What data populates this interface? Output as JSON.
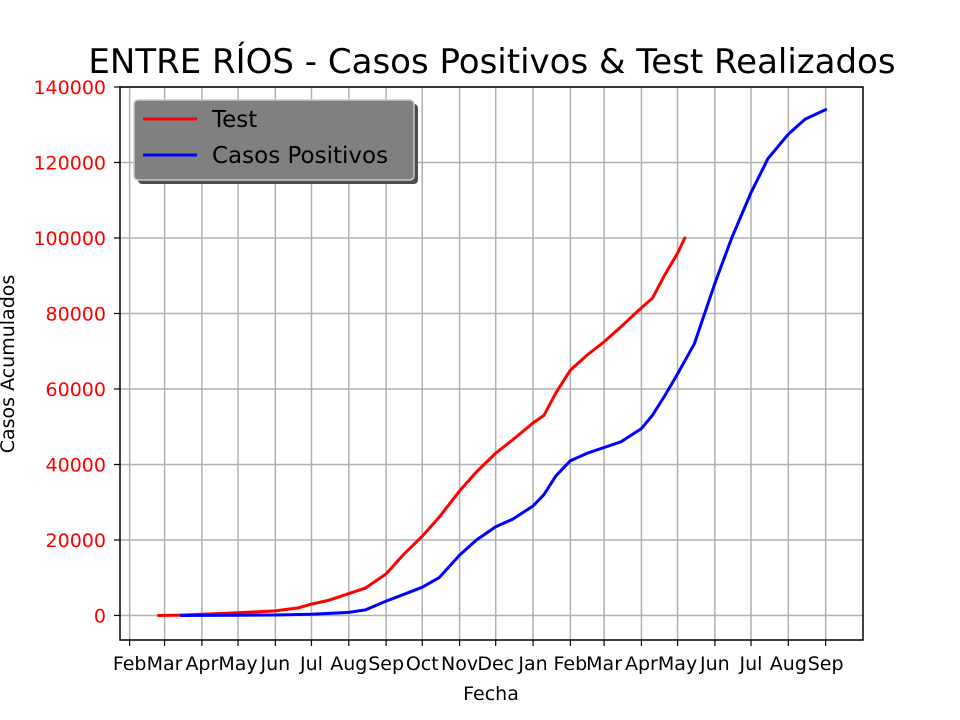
{
  "chart_data": {
    "type": "line",
    "title": "ENTRE RÍOS - Casos Positivos & Test Realizados",
    "xlabel": "Fecha",
    "ylabel": "Casos Acumulados",
    "ylim": [
      -6500,
      140000
    ],
    "xlim": [
      "2020-01-24",
      "2021-10-02"
    ],
    "yticks": [
      0,
      20000,
      40000,
      60000,
      80000,
      100000,
      120000,
      140000
    ],
    "xticks": [
      {
        "date": "2020-02-01",
        "label": "Feb"
      },
      {
        "date": "2020-03-01",
        "label": "Mar"
      },
      {
        "date": "2020-04-01",
        "label": "Apr"
      },
      {
        "date": "2020-05-01",
        "label": "May"
      },
      {
        "date": "2020-06-01",
        "label": "Jun"
      },
      {
        "date": "2020-07-01",
        "label": "Jul"
      },
      {
        "date": "2020-08-01",
        "label": "Aug"
      },
      {
        "date": "2020-09-01",
        "label": "Sep"
      },
      {
        "date": "2020-10-01",
        "label": "Oct"
      },
      {
        "date": "2020-11-01",
        "label": "Nov"
      },
      {
        "date": "2020-12-01",
        "label": "Dec"
      },
      {
        "date": "2021-01-01",
        "label": "Jan"
      },
      {
        "date": "2021-02-01",
        "label": "Feb"
      },
      {
        "date": "2021-03-01",
        "label": "Mar"
      },
      {
        "date": "2021-04-01",
        "label": "Apr"
      },
      {
        "date": "2021-05-01",
        "label": "May"
      },
      {
        "date": "2021-06-01",
        "label": "Jun"
      },
      {
        "date": "2021-07-01",
        "label": "Jul"
      },
      {
        "date": "2021-08-01",
        "label": "Aug"
      },
      {
        "date": "2021-09-01",
        "label": "Sep"
      }
    ],
    "grid": true,
    "legend_position": "top-left",
    "series": [
      {
        "name": "Test",
        "color": "#ff0000",
        "points": [
          {
            "x": "2020-02-25",
            "y": 0
          },
          {
            "x": "2020-03-15",
            "y": 100
          },
          {
            "x": "2020-04-01",
            "y": 300
          },
          {
            "x": "2020-05-01",
            "y": 700
          },
          {
            "x": "2020-06-01",
            "y": 1200
          },
          {
            "x": "2020-06-20",
            "y": 2000
          },
          {
            "x": "2020-07-01",
            "y": 3000
          },
          {
            "x": "2020-07-15",
            "y": 4000
          },
          {
            "x": "2020-08-01",
            "y": 5800
          },
          {
            "x": "2020-08-15",
            "y": 7300
          },
          {
            "x": "2020-09-01",
            "y": 11000
          },
          {
            "x": "2020-09-15",
            "y": 16000
          },
          {
            "x": "2020-10-01",
            "y": 21000
          },
          {
            "x": "2020-10-15",
            "y": 26000
          },
          {
            "x": "2020-11-01",
            "y": 33000
          },
          {
            "x": "2020-11-15",
            "y": 38000
          },
          {
            "x": "2020-12-01",
            "y": 43000
          },
          {
            "x": "2020-12-15",
            "y": 46500
          },
          {
            "x": "2021-01-01",
            "y": 51000
          },
          {
            "x": "2021-01-10",
            "y": 53000
          },
          {
            "x": "2021-01-20",
            "y": 59000
          },
          {
            "x": "2021-02-01",
            "y": 65000
          },
          {
            "x": "2021-02-15",
            "y": 69000
          },
          {
            "x": "2021-03-01",
            "y": 72500
          },
          {
            "x": "2021-03-15",
            "y": 76500
          },
          {
            "x": "2021-04-01",
            "y": 81500
          },
          {
            "x": "2021-04-10",
            "y": 84000
          },
          {
            "x": "2021-04-20",
            "y": 90000
          },
          {
            "x": "2021-05-01",
            "y": 96000
          },
          {
            "x": "2021-05-07",
            "y": 100000
          }
        ]
      },
      {
        "name": "Casos Positivos",
        "color": "#0000ff",
        "points": [
          {
            "x": "2020-03-15",
            "y": 0
          },
          {
            "x": "2020-04-01",
            "y": 20
          },
          {
            "x": "2020-05-01",
            "y": 60
          },
          {
            "x": "2020-06-01",
            "y": 120
          },
          {
            "x": "2020-07-01",
            "y": 300
          },
          {
            "x": "2020-08-01",
            "y": 800
          },
          {
            "x": "2020-08-15",
            "y": 1500
          },
          {
            "x": "2020-09-01",
            "y": 3800
          },
          {
            "x": "2020-09-15",
            "y": 5500
          },
          {
            "x": "2020-10-01",
            "y": 7500
          },
          {
            "x": "2020-10-15",
            "y": 10000
          },
          {
            "x": "2020-11-01",
            "y": 16000
          },
          {
            "x": "2020-11-15",
            "y": 20000
          },
          {
            "x": "2020-12-01",
            "y": 23500
          },
          {
            "x": "2020-12-15",
            "y": 25500
          },
          {
            "x": "2021-01-01",
            "y": 29000
          },
          {
            "x": "2021-01-10",
            "y": 32000
          },
          {
            "x": "2021-01-20",
            "y": 37000
          },
          {
            "x": "2021-02-01",
            "y": 41000
          },
          {
            "x": "2021-02-15",
            "y": 43000
          },
          {
            "x": "2021-03-01",
            "y": 44500
          },
          {
            "x": "2021-03-15",
            "y": 46000
          },
          {
            "x": "2021-04-01",
            "y": 49500
          },
          {
            "x": "2021-04-10",
            "y": 53000
          },
          {
            "x": "2021-04-20",
            "y": 58000
          },
          {
            "x": "2021-05-01",
            "y": 64000
          },
          {
            "x": "2021-05-15",
            "y": 72000
          },
          {
            "x": "2021-06-01",
            "y": 88000
          },
          {
            "x": "2021-06-15",
            "y": 100000
          },
          {
            "x": "2021-07-01",
            "y": 112000
          },
          {
            "x": "2021-07-15",
            "y": 121000
          },
          {
            "x": "2021-08-01",
            "y": 127500
          },
          {
            "x": "2021-08-15",
            "y": 131500
          },
          {
            "x": "2021-09-01",
            "y": 134000
          }
        ]
      }
    ]
  },
  "colors": {
    "ytick_label": "#ff0000",
    "grid": "#b0b0b0",
    "legend_background": "#808080"
  }
}
